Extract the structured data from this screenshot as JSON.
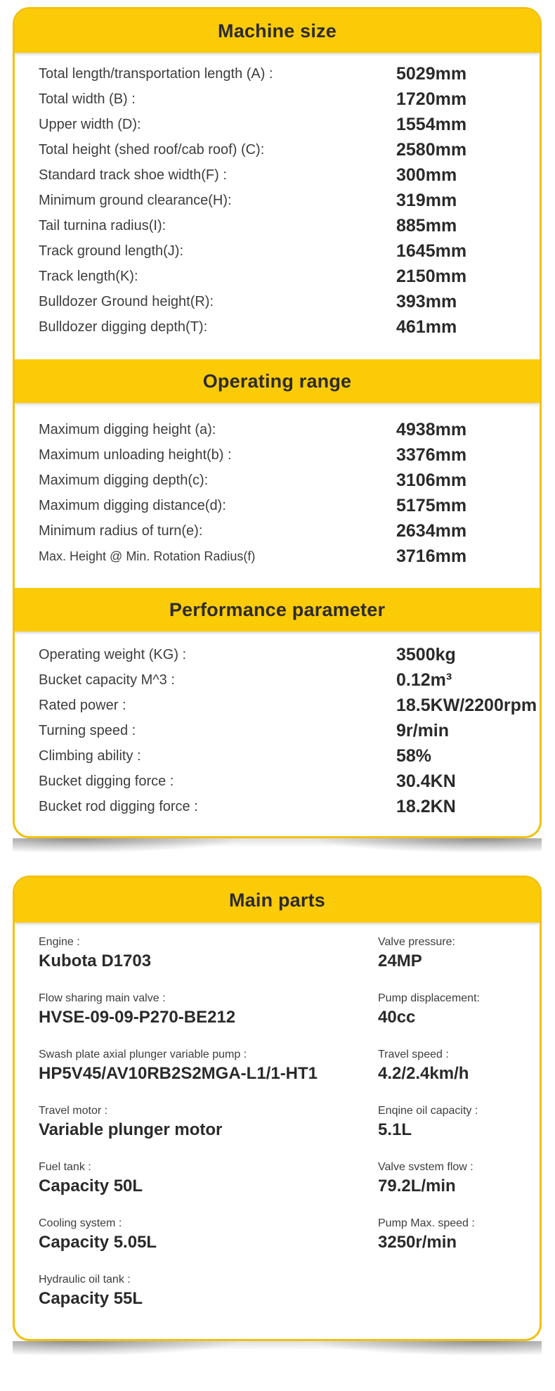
{
  "colors": {
    "accent_yellow": "#FBCB08",
    "card_border": "#F2C10E",
    "title_text": "#2D2B2C",
    "label_text": "#3D3D3D",
    "value_text": "#2A2A2A"
  },
  "specs_card": {
    "sections": [
      {
        "title": "Machine size",
        "rows": [
          {
            "label": "Total length/transportation length (A) :",
            "value": "5029mm"
          },
          {
            "label": "Total width (B) :",
            "value": "1720mm"
          },
          {
            "label": "Upper width (D):",
            "value": "1554mm"
          },
          {
            "label": "Total height (shed roof/cab roof) (C):",
            "value": "2580mm"
          },
          {
            "label": "Standard track shoe width(F) :",
            "value": "300mm"
          },
          {
            "label": "Minimum ground clearance(H):",
            "value": "319mm"
          },
          {
            "label": "Tail turnina radius(I):",
            "value": "885mm"
          },
          {
            "label": "Track ground length(J):",
            "value": "1645mm"
          },
          {
            "label": "Track length(K):",
            "value": "2150mm"
          },
          {
            "label": "Bulldozer Ground height(R):",
            "value": "393mm"
          },
          {
            "label": "Bulldozer digging depth(T):",
            "value": "461mm"
          }
        ]
      },
      {
        "title": "Operating range",
        "rows": [
          {
            "label": "Maximum digging height (a):",
            "value": "4938mm"
          },
          {
            "label": "Maximum unloading height(b) :",
            "value": "3376mm"
          },
          {
            "label": "Maximum digging depth(c):",
            "value": "3106mm"
          },
          {
            "label": "Maximum digging distance(d):",
            "value": "5175mm"
          },
          {
            "label": "Minimum radius of turn(e):",
            "value": "2634mm"
          },
          {
            "label": "Max. Height @ Min. Rotation Radius(f)",
            "value": "3716mm"
          }
        ]
      },
      {
        "title": "Performance parameter",
        "rows": [
          {
            "label": "Operating weight (KG) :",
            "value": "3500kg"
          },
          {
            "label": "Bucket capacity M^3 :",
            "value": "0.12m³"
          },
          {
            "label": "Rated power :",
            "value": "18.5KW/2200rpm"
          },
          {
            "label": "Turning speed :",
            "value": "9r/min"
          },
          {
            "label": "Climbing ability :",
            "value": "58%"
          },
          {
            "label": "Bucket digging force :",
            "value": "30.4KN"
          },
          {
            "label": "Bucket rod digging force :",
            "value": "18.2KN"
          }
        ]
      }
    ]
  },
  "main_parts": {
    "title": "Main parts",
    "left": [
      {
        "label": "Engine :",
        "value": "Kubota D1703"
      },
      {
        "label": "Flow sharing main valve :",
        "value": "HVSE-09-09-P270-BE212"
      },
      {
        "label": "Swash plate axial plunger variable pump :",
        "value": "HP5V45/AV10RB2S2MGA-L1/1-HT1"
      },
      {
        "label": "Travel motor :",
        "value": "Variable plunger motor"
      },
      {
        "label": "Fuel tank :",
        "value": "Capacity 50L"
      },
      {
        "label": "Cooling system :",
        "value": "Capacity 5.05L"
      },
      {
        "label": "Hydraulic oil tank :",
        "value": "Capacity 55L"
      }
    ],
    "right": [
      {
        "label": "Valve pressure:",
        "value": "24MP"
      },
      {
        "label": "Pump displacement:",
        "value": "40cc"
      },
      {
        "label": "Travel speed :",
        "value": "4.2/2.4km/h"
      },
      {
        "label": "Enqine oil capacity :",
        "value": "5.1L"
      },
      {
        "label": "Valve svstem flow :",
        "value": "79.2L/min"
      },
      {
        "label": "Pump Max. speed :",
        "value": "3250r/min"
      }
    ]
  }
}
